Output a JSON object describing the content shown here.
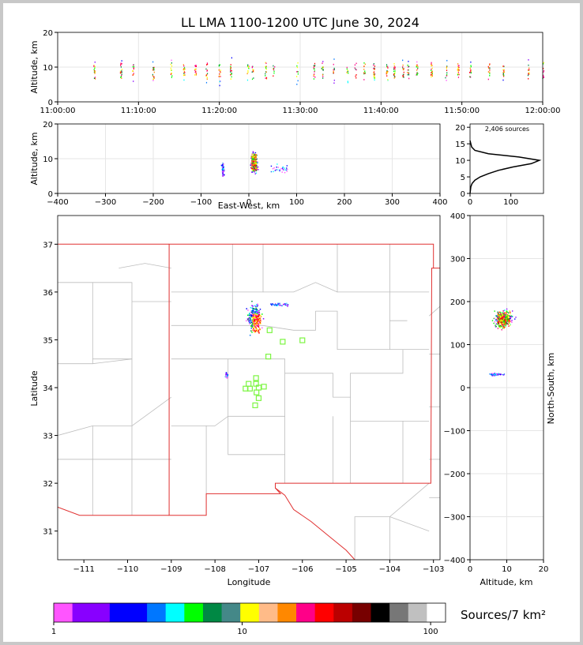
{
  "title": "LL LMA 1100-1200 UTC June 30, 2024",
  "chart_data": [
    {
      "type": "scatter",
      "panel": "time-height",
      "ylabel": "Altitude, km",
      "xlim": [
        "11:00:00",
        "12:00:00"
      ],
      "ylim": [
        0,
        20
      ],
      "x_ticks": [
        "11:00:00",
        "11:10:00",
        "11:20:00",
        "11:30:00",
        "11:40:00",
        "11:50:00",
        "12:00:00"
      ],
      "y_ticks": [
        "0",
        "10",
        "20"
      ],
      "grid": true,
      "flash_columns_min": [
        4.5,
        7.8,
        9.3,
        11.8,
        14,
        15.6,
        17,
        18.4,
        20,
        21.4,
        23.5,
        24.1,
        25.7,
        26.7,
        29.6,
        31.7,
        32.7,
        34.1,
        35.8,
        36.8,
        37.9,
        39.1,
        40.7,
        41.6,
        42.7,
        43.3,
        44.4,
        46.2,
        48,
        49.5,
        51,
        53.3,
        55.1,
        58.2,
        60
      ]
    },
    {
      "type": "scatter",
      "panel": "east-west-height",
      "xlabel": "East-West, km",
      "ylabel": "Altitude, km",
      "xlim": [
        -400,
        400
      ],
      "ylim": [
        0,
        20
      ],
      "x_ticks": [
        "−400",
        "−300",
        "−200",
        "−100",
        "0",
        "100",
        "200",
        "300",
        "400"
      ],
      "y_ticks": [
        "0",
        "10",
        "20"
      ],
      "grid": true
    },
    {
      "type": "line",
      "panel": "altitude-histogram",
      "annotation": "2,406 sources",
      "xlim": [
        0,
        180
      ],
      "ylim": [
        0,
        21
      ],
      "x_ticks": [
        "0",
        "100"
      ],
      "y_ticks": [
        "0",
        "5",
        "10",
        "15",
        "20"
      ],
      "y": [
        0,
        2,
        3,
        4,
        5,
        6,
        7,
        8,
        9,
        10,
        11,
        12,
        13,
        14,
        15,
        16
      ],
      "x": [
        0,
        2,
        5,
        12,
        25,
        45,
        70,
        105,
        150,
        170,
        120,
        45,
        12,
        4,
        2,
        0
      ]
    },
    {
      "type": "map",
      "panel": "plan-view",
      "xlabel": "Longitude",
      "ylabel": "Latitude",
      "xlim": [
        -111.6,
        -102.85
      ],
      "ylim": [
        30.4,
        37.6
      ],
      "x_ticks": [
        "−111",
        "−110",
        "−109",
        "−108",
        "−107",
        "−106",
        "−105",
        "−104",
        "−103"
      ],
      "y_ticks": [
        "31",
        "32",
        "33",
        "34",
        "35",
        "36",
        "37"
      ],
      "stations": [
        [
          -106.75,
          35.2
        ],
        [
          -106.45,
          34.96
        ],
        [
          -106.0,
          34.99
        ],
        [
          -106.78,
          34.65
        ],
        [
          -107.06,
          34.2
        ],
        [
          -107.23,
          34.08
        ],
        [
          -107.06,
          34.08
        ],
        [
          -107.3,
          33.98
        ],
        [
          -107.2,
          33.98
        ],
        [
          -107.0,
          34.0
        ],
        [
          -106.88,
          34.02
        ],
        [
          -107.05,
          33.9
        ],
        [
          -107.0,
          33.78
        ],
        [
          -107.08,
          33.63
        ]
      ],
      "station_color": "#7cf542",
      "state_border_color": "#e03030"
    },
    {
      "type": "scatter",
      "panel": "north-south-height",
      "xlabel": "Altitude, km",
      "ylabel": "North-South, km",
      "xlim": [
        0,
        20
      ],
      "ylim": [
        -400,
        400
      ],
      "x_ticks": [
        "0",
        "10",
        "20"
      ],
      "y_ticks": [
        "−400",
        "−300",
        "−200",
        "−100",
        "0",
        "100",
        "200",
        "300",
        "400"
      ],
      "grid": true
    },
    {
      "type": "colorbar",
      "label": "Sources/7 km²",
      "scale": "log",
      "ticks": [
        "1",
        "10",
        "100"
      ],
      "colors": [
        "#ff55ff",
        "#8800ff",
        "#8800ff",
        "#0000ff",
        "#0000ff",
        "#0077ff",
        "#00ffff",
        "#00ff00",
        "#008844",
        "#448888",
        "#ffff00",
        "#ffbb88",
        "#ff8800",
        "#ff0088",
        "#ff0000",
        "#bb0000",
        "#770000",
        "#000000",
        "#777777",
        "#c0c0c0",
        "#ffffff"
      ]
    }
  ]
}
